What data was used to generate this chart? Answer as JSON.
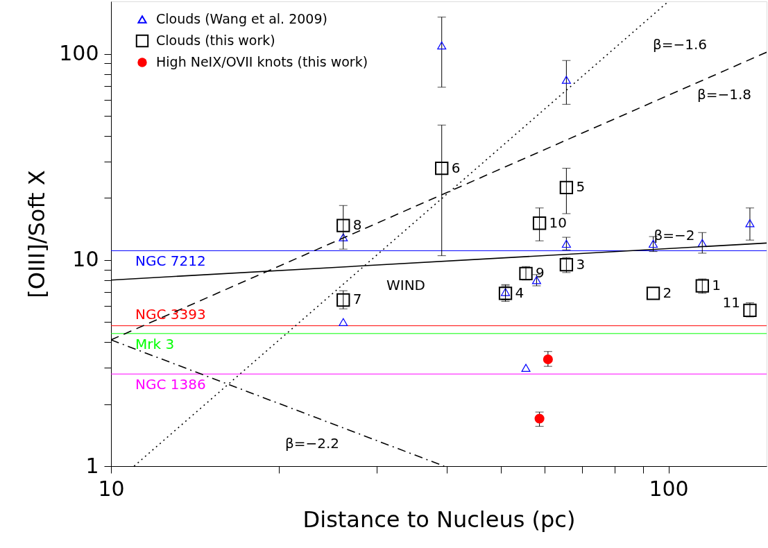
{
  "chart_data": {
    "type": "scatter",
    "xlabel": "Distance to Nucleus (pc)",
    "ylabel": "[OIII]/Soft X",
    "log": "xy",
    "grid": false,
    "legend": "top left",
    "xlim": [
      10,
      150
    ],
    "ylim": [
      1,
      180
    ],
    "xticks": [
      10,
      {
        "value": 20,
        "label": null
      },
      {
        "value": 30,
        "label": null
      },
      {
        "value": 40,
        "label": null
      },
      {
        "value": 50,
        "label": null
      },
      {
        "value": 60,
        "label": null
      },
      {
        "value": 70,
        "label": null
      },
      {
        "value": 80,
        "label": null
      },
      {
        "value": 90,
        "label": null
      },
      100
    ],
    "yticks": [
      1,
      {
        "value": 2,
        "label": null
      },
      {
        "value": 3,
        "label": null
      },
      {
        "value": 4,
        "label": null
      },
      {
        "value": 5,
        "label": null
      },
      {
        "value": 6,
        "label": null
      },
      {
        "value": 7,
        "label": null
      },
      {
        "value": 8,
        "label": null
      },
      {
        "value": 9,
        "label": null
      },
      10,
      {
        "value": 20,
        "label": null
      },
      {
        "value": 30,
        "label": null
      },
      {
        "value": 40,
        "label": null
      },
      {
        "value": 50,
        "label": null
      },
      {
        "value": 60,
        "label": null
      },
      {
        "value": 70,
        "label": null
      },
      {
        "value": 80,
        "label": null
      },
      {
        "value": 90,
        "label": null
      },
      100
    ],
    "series": [
      {
        "name": "Clouds (Wang et al. 2009)",
        "marker": "triangle",
        "color": "#0000ff",
        "x": [
          26.1,
          26.1,
          39.2,
          65.6,
          65.6,
          51.0,
          58.0,
          55.5,
          93.9,
          115,
          140
        ],
        "values": [
          12.9,
          5.0,
          110,
          75,
          12.0,
          7.0,
          8.0,
          3.0,
          12.0,
          12.1,
          15.1
        ],
        "errors": [
          null,
          null,
          [
            69,
            151
          ],
          [
            57,
            93
          ],
          [
            11.2,
            12.9
          ],
          [
            6.4,
            7.6
          ],
          [
            7.5,
            8.5
          ],
          null,
          [
            11.0,
            13.0
          ],
          [
            10.8,
            13.6
          ],
          [
            12.5,
            17.9
          ]
        ]
      },
      {
        "name": "Clouds (this work)",
        "marker": "square",
        "color": "#000000",
        "x": [
          26.1,
          26.1,
          39.2,
          65.6,
          58.7,
          55.5,
          51.0,
          65.6,
          93.9,
          115,
          140
        ],
        "values": [
          14.7,
          6.4,
          27.9,
          22.5,
          15.1,
          8.6,
          6.9,
          9.5,
          6.9,
          7.5,
          5.7
        ],
        "errors": [
          [
            11.3,
            18.4
          ],
          [
            5.8,
            7.1
          ],
          [
            10.5,
            45.2
          ],
          [
            16.8,
            27.9
          ],
          [
            12.4,
            17.9
          ],
          [
            8.0,
            9.3
          ],
          [
            6.3,
            7.5
          ],
          [
            8.7,
            10.3
          ],
          null,
          [
            6.9,
            8.1
          ],
          [
            5.3,
            6.2
          ]
        ]
      },
      {
        "name": "High NeIX/OVII knots (this work)",
        "marker": "circle",
        "color": "#ff0000",
        "x": [
          60.8,
          58.7
        ],
        "values": [
          3.3,
          1.7
        ],
        "errors": [
          [
            3.05,
            3.6
          ],
          [
            1.56,
            1.83
          ]
        ]
      },
      {
        "name": "β=−2",
        "type": "line",
        "line_style": "solid",
        "color": "#000000",
        "x": [
          10,
          150
        ],
        "values": [
          8.0,
          12.1
        ]
      },
      {
        "name": "β=−1.8",
        "type": "line",
        "line_style": "dashed",
        "color": "#000000",
        "x": [
          10,
          150
        ],
        "values": [
          4.1,
          102
        ]
      },
      {
        "name": "β=−1.6",
        "type": "line",
        "line_style": "dotted",
        "color": "#000000",
        "x": [
          11,
          100
        ],
        "values": [
          1,
          180
        ]
      },
      {
        "name": "β=−2.2",
        "type": "line",
        "line_style": "dashdot",
        "color": "#000000",
        "x": [
          10,
          39.6
        ],
        "values": [
          4.1,
          1
        ]
      }
    ],
    "ref_lines": [
      {
        "axis": "y",
        "value": 11.1,
        "label": "NGC 7212",
        "color": "#0000ff"
      },
      {
        "axis": "y",
        "value": 4.8,
        "label": "NGC 3393",
        "color": "#ff0000"
      },
      {
        "axis": "y",
        "value": 4.4,
        "label": "Mrk 3",
        "color": "#00ff00"
      },
      {
        "axis": "y",
        "value": 2.8,
        "label": "NGC 1386",
        "color": "#ff00ff"
      }
    ],
    "annotations": [
      "WIND",
      {
        "text": "8",
        "x": 26.1,
        "y": 14.7
      },
      {
        "text": "7",
        "x": 26.1,
        "y": 6.4
      },
      {
        "text": "6",
        "x": 39.2,
        "y": 27.9
      },
      {
        "text": "5",
        "x": 65.6,
        "y": 22.5
      },
      {
        "text": "10",
        "x": 58.7,
        "y": 15.1
      },
      {
        "text": "9",
        "x": 55.5,
        "y": 8.6
      },
      {
        "text": "4",
        "x": 51.0,
        "y": 6.9
      },
      {
        "text": "3",
        "x": 65.6,
        "y": 9.5
      },
      {
        "text": "2",
        "x": 93.9,
        "y": 6.9
      },
      {
        "text": "1",
        "x": 115,
        "y": 7.5
      },
      {
        "text": "11",
        "x": 140,
        "y": 5.7
      }
    ]
  }
}
